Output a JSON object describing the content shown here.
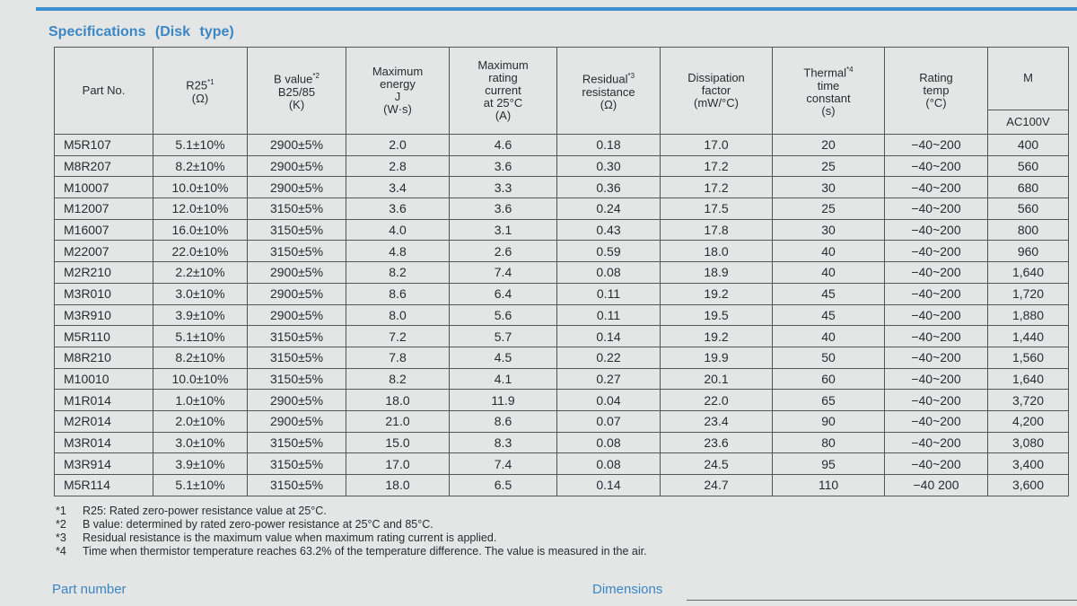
{
  "header": {
    "title": "Specifications (Disk type)"
  },
  "table": {
    "columns": [
      {
        "lines": [
          "Part No."
        ]
      },
      {
        "lines": [
          "R25",
          "(Ω)"
        ],
        "note": "*1"
      },
      {
        "lines": [
          "B value",
          "B25/85",
          "(K)"
        ],
        "note": "*2"
      },
      {
        "lines": [
          "Maximum",
          "energy",
          "J",
          "(W·s)"
        ]
      },
      {
        "lines": [
          "Maximum",
          "rating",
          "current",
          "at 25°C",
          "(A)"
        ]
      },
      {
        "lines": [
          "Residual",
          "resistance",
          "(Ω)"
        ],
        "note": "*3"
      },
      {
        "lines": [
          "Dissipation",
          "factor",
          "(mW/°C)"
        ]
      },
      {
        "lines": [
          "Thermal",
          "time",
          "constant",
          "(s)"
        ],
        "note": "*4"
      },
      {
        "lines": [
          "Rating",
          "temp",
          "(°C)"
        ]
      },
      {
        "lines": [
          "M"
        ],
        "sub": "AC100V"
      }
    ],
    "rows": [
      [
        "M5R107",
        "5.1±10%",
        "2900±5%",
        "2.0",
        "4.6",
        "0.18",
        "17.0",
        "20",
        "−40~200",
        "400"
      ],
      [
        "M8R207",
        "8.2±10%",
        "2900±5%",
        "2.8",
        "3.6",
        "0.30",
        "17.2",
        "25",
        "−40~200",
        "560"
      ],
      [
        "M10007",
        "10.0±10%",
        "2900±5%",
        "3.4",
        "3.3",
        "0.36",
        "17.2",
        "30",
        "−40~200",
        "680"
      ],
      [
        "M12007",
        "12.0±10%",
        "3150±5%",
        "3.6",
        "3.6",
        "0.24",
        "17.5",
        "25",
        "−40~200",
        "560"
      ],
      [
        "M16007",
        "16.0±10%",
        "3150±5%",
        "4.0",
        "3.1",
        "0.43",
        "17.8",
        "30",
        "−40~200",
        "800"
      ],
      [
        "M22007",
        "22.0±10%",
        "3150±5%",
        "4.8",
        "2.6",
        "0.59",
        "18.0",
        "40",
        "−40~200",
        "960"
      ],
      [
        "M2R210",
        "2.2±10%",
        "2900±5%",
        "8.2",
        "7.4",
        "0.08",
        "18.9",
        "40",
        "−40~200",
        "1,640"
      ],
      [
        "M3R010",
        "3.0±10%",
        "2900±5%",
        "8.6",
        "6.4",
        "0.11",
        "19.2",
        "45",
        "−40~200",
        "1,720"
      ],
      [
        "M3R910",
        "3.9±10%",
        "2900±5%",
        "8.0",
        "5.6",
        "0.11",
        "19.5",
        "45",
        "−40~200",
        "1,880"
      ],
      [
        "M5R110",
        "5.1±10%",
        "3150±5%",
        "7.2",
        "5.7",
        "0.14",
        "19.2",
        "40",
        "−40~200",
        "1,440"
      ],
      [
        "M8R210",
        "8.2±10%",
        "3150±5%",
        "7.8",
        "4.5",
        "0.22",
        "19.9",
        "50",
        "−40~200",
        "1,560"
      ],
      [
        "M10010",
        "10.0±10%",
        "3150±5%",
        "8.2",
        "4.1",
        "0.27",
        "20.1",
        "60",
        "−40~200",
        "1,640"
      ],
      [
        "M1R014",
        "1.0±10%",
        "2900±5%",
        "18.0",
        "11.9",
        "0.04",
        "22.0",
        "65",
        "−40~200",
        "3,720"
      ],
      [
        "M2R014",
        "2.0±10%",
        "2900±5%",
        "21.0",
        "8.6",
        "0.07",
        "23.4",
        "90",
        "−40~200",
        "4,200"
      ],
      [
        "M3R014",
        "3.0±10%",
        "3150±5%",
        "15.0",
        "8.3",
        "0.08",
        "23.6",
        "80",
        "−40~200",
        "3,080"
      ],
      [
        "M3R914",
        "3.9±10%",
        "3150±5%",
        "17.0",
        "7.4",
        "0.08",
        "24.5",
        "95",
        "−40~200",
        "3,400"
      ],
      [
        "M5R114",
        "5.1±10%",
        "3150±5%",
        "18.0",
        "6.5",
        "0.14",
        "24.7",
        "110",
        "−40 200",
        "3,600"
      ]
    ]
  },
  "footnotes": [
    {
      "mark": "*1",
      "text": "R25: Rated zero-power resistance value at 25°C."
    },
    {
      "mark": "*2",
      "text": "B value: determined by rated zero-power resistance at 25°C and 85°C."
    },
    {
      "mark": "*3",
      "text": "Residual resistance is the maximum value when maximum rating current is applied."
    },
    {
      "mark": "*4",
      "text": "Time when thermistor temperature reaches 63.2% of the temperature difference. The value is measured in the air."
    }
  ],
  "footer": {
    "left": "Part number",
    "right": "Dimensions"
  }
}
